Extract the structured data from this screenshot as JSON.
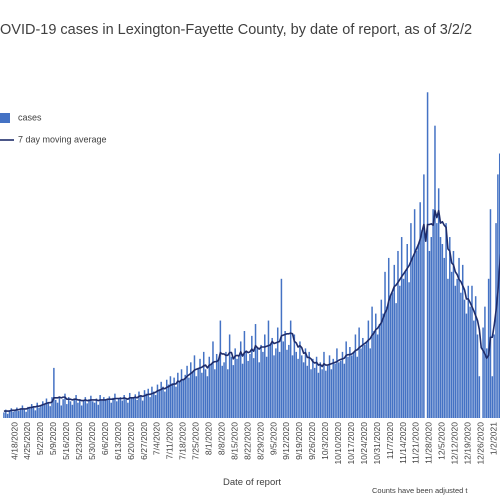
{
  "chart_data": {
    "type": "bar",
    "title": "OVID-19 cases in Lexington-Fayette County, by date of report, as of 3/2/2",
    "x_label": "Date of report",
    "note": "Counts have been adjusted t",
    "ylim": [
      0,
      500
    ],
    "categories": [
      null,
      null,
      null,
      null,
      null,
      null,
      "4/18/2020",
      null,
      null,
      null,
      null,
      null,
      null,
      "4/25/2020",
      null,
      null,
      null,
      null,
      null,
      null,
      "5/2/2020",
      null,
      null,
      null,
      null,
      null,
      null,
      "5/9/2020",
      null,
      null,
      null,
      null,
      null,
      null,
      "5/16/2020",
      null,
      null,
      null,
      null,
      null,
      null,
      "5/23/2020",
      null,
      null,
      null,
      null,
      null,
      null,
      "5/30/2020",
      null,
      null,
      null,
      null,
      null,
      null,
      "6/6/2020",
      null,
      null,
      null,
      null,
      null,
      null,
      "6/13/2020",
      null,
      null,
      null,
      null,
      null,
      null,
      "6/20/2020",
      null,
      null,
      null,
      null,
      null,
      null,
      "6/27/2020",
      null,
      null,
      null,
      null,
      null,
      null,
      "7/4/2020",
      null,
      null,
      null,
      null,
      null,
      null,
      "7/11/2020",
      null,
      null,
      null,
      null,
      null,
      null,
      "7/18/2020",
      null,
      null,
      null,
      null,
      null,
      null,
      "7/25/2020",
      null,
      null,
      null,
      null,
      null,
      null,
      "8/1/2020",
      null,
      null,
      null,
      null,
      null,
      null,
      "8/8/2020",
      null,
      null,
      null,
      null,
      null,
      null,
      "8/15/2020",
      null,
      null,
      null,
      null,
      null,
      null,
      "8/22/2020",
      null,
      null,
      null,
      null,
      null,
      null,
      "8/29/2020",
      null,
      null,
      null,
      null,
      null,
      null,
      "9/5/2020",
      null,
      null,
      null,
      null,
      null,
      null,
      "9/12/2020",
      null,
      null,
      null,
      null,
      null,
      null,
      "9/19/2020",
      null,
      null,
      null,
      null,
      null,
      null,
      "9/26/2020",
      null,
      null,
      null,
      null,
      null,
      null,
      "10/3/2020",
      null,
      null,
      null,
      null,
      null,
      null,
      "10/10/2020",
      null,
      null,
      null,
      null,
      null,
      null,
      "10/17/2020",
      null,
      null,
      null,
      null,
      null,
      null,
      "10/24/2020",
      null,
      null,
      null,
      null,
      null,
      null,
      "10/31/2020",
      null,
      null,
      null,
      null,
      null,
      null,
      "11/7/2020",
      null,
      null,
      null,
      null,
      null,
      null,
      "11/14/2020",
      null,
      null,
      null,
      null,
      null,
      null,
      "11/21/2020",
      null,
      null,
      null,
      null,
      null,
      null,
      "11/28/2020",
      null,
      null,
      null,
      null,
      null,
      null,
      "12/5/2020",
      null,
      null,
      null,
      null,
      null,
      null,
      "12/12/2020",
      null,
      null,
      null,
      null,
      null,
      null,
      "12/19/2020",
      null,
      null,
      null,
      null,
      null,
      null,
      "12/26/2020",
      null,
      null,
      null,
      null,
      null,
      null,
      "1/2/2021",
      null,
      null,
      null,
      null
    ],
    "series": [
      {
        "name": "cases",
        "type": "bar",
        "color": "#4472c4",
        "values": [
          8,
          12,
          6,
          10,
          14,
          9,
          11,
          15,
          10,
          13,
          18,
          12,
          9,
          16,
          14,
          20,
          17,
          11,
          22,
          15,
          18,
          24,
          19,
          28,
          21,
          17,
          30,
          72,
          26,
          22,
          31,
          18,
          27,
          35,
          20,
          30,
          24,
          19,
          28,
          33,
          22,
          26,
          18,
          25,
          30,
          21,
          27,
          32,
          24,
          22,
          28,
          19,
          33,
          25,
          30,
          27,
          26,
          31,
          22,
          29,
          35,
          24,
          28,
          30,
          25,
          33,
          27,
          22,
          36,
          29,
          28,
          34,
          26,
          38,
          31,
          25,
          40,
          35,
          42,
          30,
          45,
          38,
          33,
          48,
          40,
          52,
          45,
          38,
          55,
          48,
          60,
          50,
          58,
          45,
          65,
          52,
          70,
          55,
          62,
          75,
          58,
          80,
          66,
          90,
          60,
          72,
          85,
          65,
          95,
          70,
          60,
          88,
          78,
          110,
          70,
          92,
          85,
          140,
          75,
          80,
          95,
          70,
          120,
          88,
          76,
          100,
          85,
          90,
          110,
          78,
          125,
          95,
          82,
          92,
          118,
          86,
          135,
          100,
          80,
          105,
          95,
          120,
          88,
          140,
          105,
          115,
          90,
          100,
          130,
          95,
          200,
          110,
          125,
          98,
          105,
          140,
          90,
          120,
          95,
          85,
          110,
          90,
          80,
          100,
          75,
          95,
          70,
          85,
          72,
          88,
          65,
          80,
          70,
          95,
          68,
          75,
          90,
          70,
          85,
          78,
          100,
          80,
          82,
          95,
          78,
          110,
          88,
          102,
          90,
          95,
          120,
          88,
          130,
          100,
          115,
          105,
          110,
          140,
          100,
          160,
          125,
          150,
          120,
          135,
          170,
          150,
          210,
          160,
          230,
          175,
          180,
          220,
          165,
          240,
          190,
          260,
          200,
          210,
          250,
          195,
          280,
          230,
          300,
          240,
          250,
          310,
          270,
          350,
          0,
          468,
          240,
          260,
          300,
          420,
          280,
          330,
          260,
          250,
          230,
          280,
          200,
          260,
          210,
          240,
          190,
          200,
          230,
          180,
          220,
          170,
          150,
          190,
          160,
          190,
          140,
          175,
          120,
          60,
          0,
          130,
          160,
          100,
          200,
          300,
          60,
          120,
          280,
          350,
          380,
          400
        ]
      },
      {
        "name": "7 day moving average",
        "type": "line",
        "color": "#1f2d6b",
        "values": [
          10,
          10,
          10,
          10,
          11,
          11,
          11,
          12,
          12,
          13,
          13,
          13,
          13,
          14,
          15,
          15,
          16,
          16,
          17,
          17,
          18,
          19,
          20,
          21,
          22,
          22,
          23,
          29,
          29,
          29,
          30,
          29,
          30,
          30,
          27,
          27,
          27,
          26,
          27,
          27,
          26,
          26,
          25,
          25,
          26,
          25,
          25,
          26,
          26,
          26,
          26,
          25,
          26,
          26,
          26,
          26,
          27,
          27,
          27,
          27,
          28,
          28,
          28,
          28,
          28,
          29,
          28,
          27,
          29,
          29,
          29,
          30,
          29,
          31,
          32,
          31,
          32,
          33,
          34,
          34,
          35,
          36,
          37,
          39,
          40,
          41,
          43,
          42,
          44,
          45,
          47,
          48,
          49,
          49,
          53,
          52,
          55,
          55,
          57,
          60,
          62,
          64,
          66,
          69,
          70,
          71,
          72,
          73,
          75,
          76,
          72,
          76,
          77,
          80,
          81,
          81,
          83,
          94,
          92,
          92,
          90,
          90,
          94,
          94,
          85,
          89,
          90,
          89,
          95,
          89,
          94,
          96,
          94,
          95,
          99,
          96,
          104,
          101,
          99,
          102,
          102,
          102,
          103,
          104,
          105,
          110,
          107,
          108,
          109,
          110,
          118,
          119,
          120,
          121,
          121,
          122,
          121,
          110,
          108,
          102,
          104,
          101,
          93,
          94,
          87,
          87,
          85,
          81,
          79,
          80,
          76,
          77,
          74,
          78,
          76,
          76,
          77,
          78,
          79,
          80,
          81,
          83,
          84,
          85,
          86,
          90,
          91,
          91,
          92,
          94,
          97,
          98,
          101,
          103,
          105,
          107,
          109,
          112,
          114,
          119,
          122,
          127,
          129,
          133,
          137,
          144,
          151,
          156,
          168,
          176,
          182,
          189,
          191,
          195,
          199,
          203,
          207,
          211,
          215,
          219,
          225,
          231,
          237,
          243,
          249,
          257,
          268,
          278,
          254,
          278,
          278,
          279,
          277,
          298,
          288,
          298,
          280,
          282,
          277,
          274,
          243,
          240,
          223,
          220,
          210,
          206,
          199,
          196,
          190,
          184,
          171,
          171,
          166,
          160,
          154,
          147,
          140,
          127,
          101,
          97,
          92,
          86,
          90,
          116,
          116,
          133,
          154,
          181,
          220,
          249
        ]
      }
    ]
  }
}
